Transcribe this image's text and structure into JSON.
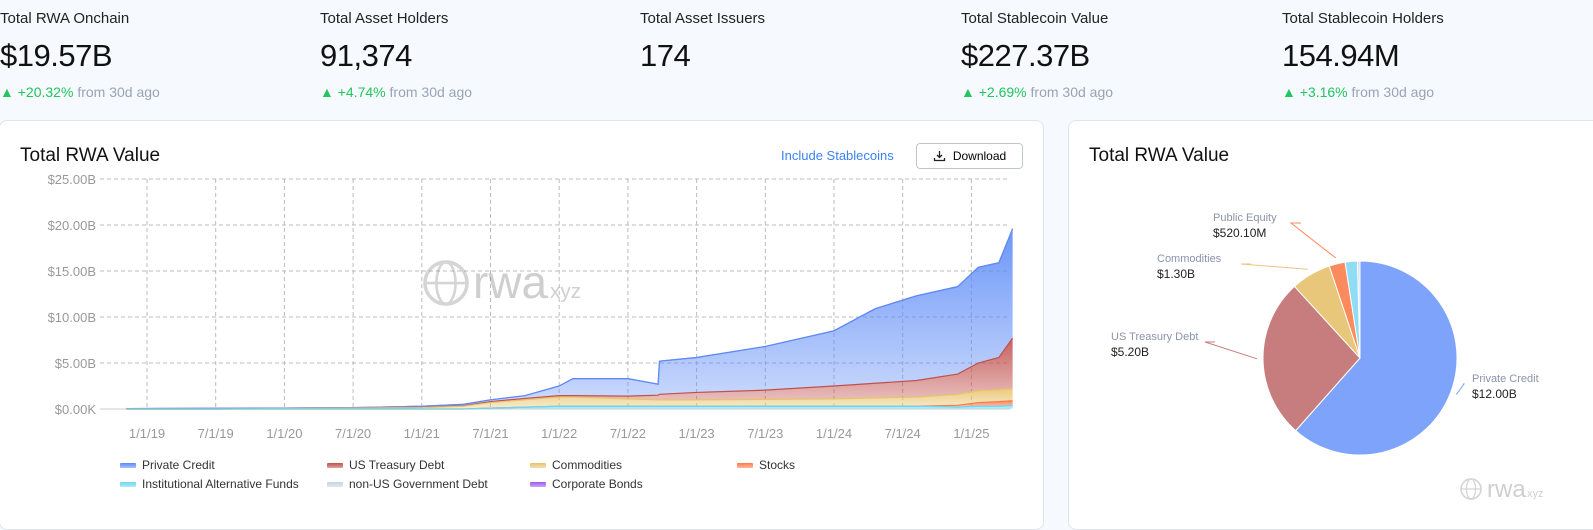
{
  "stats": [
    {
      "label": "Total RWA Onchain",
      "value": "$19.57B",
      "change": "+20.32%",
      "suffix": "from 30d ago"
    },
    {
      "label": "Total Asset Holders",
      "value": "91,374",
      "change": "+4.74%",
      "suffix": "from 30d ago"
    },
    {
      "label": "Total Asset Issuers",
      "value": "174"
    },
    {
      "label": "Total Stablecoin Value",
      "value": "$227.37B",
      "change": "+2.69%",
      "suffix": "from 30d ago"
    },
    {
      "label": "Total Stablecoin Holders",
      "value": "154.94M",
      "change": "+3.16%",
      "suffix": "from 30d ago"
    }
  ],
  "area_card": {
    "title": "Total RWA Value",
    "include_stablecoins": "Include Stablecoins",
    "download": "Download",
    "watermark": "rwa",
    "watermark_suffix": ".xyz"
  },
  "pie_card": {
    "title": "Total RWA Value",
    "watermark": "rwa",
    "watermark_suffix": ".xyz"
  },
  "colors": {
    "up": "#22c55e",
    "link": "#3b82f6"
  },
  "chart_data": [
    {
      "type": "area",
      "stacked": true,
      "title": "Total RWA Value",
      "yticks": [
        "$0.00K",
        "$5.00B",
        "$10.00B",
        "$15.00B",
        "$20.00B",
        "$25.00B"
      ],
      "ylim": [
        0,
        25
      ],
      "yunit": "B USD",
      "xticks": [
        "1/1/19",
        "7/1/19",
        "1/1/20",
        "7/1/20",
        "1/1/21",
        "7/1/21",
        "1/1/22",
        "7/1/22",
        "1/1/23",
        "7/1/23",
        "1/1/24",
        "7/1/24",
        "1/1/25"
      ],
      "x": [
        2018.85,
        2019.5,
        2020.0,
        2020.5,
        2021.0,
        2021.3,
        2021.5,
        2021.75,
        2022.0,
        2022.1,
        2022.5,
        2022.72,
        2022.73,
        2023.0,
        2023.5,
        2024.0,
        2024.3,
        2024.6,
        2024.9,
        2025.05,
        2025.2,
        2025.3
      ],
      "legend_position": "bottom",
      "grid": true,
      "series": [
        {
          "name": "Institutional Alternative Funds",
          "color": "#67d9f0",
          "values": [
            0,
            0,
            0,
            0,
            0,
            0,
            0.1,
            0.2,
            0.3,
            0.3,
            0.3,
            0.3,
            0.3,
            0.3,
            0.3,
            0.3,
            0.3,
            0.3,
            0.2,
            0.3,
            0.3,
            0.4
          ]
        },
        {
          "name": "Stocks",
          "color": "#fb7a4a",
          "values": [
            0,
            0,
            0,
            0,
            0,
            0,
            0,
            0,
            0,
            0,
            0,
            0,
            0,
            0,
            0,
            0,
            0,
            0,
            0.2,
            0.4,
            0.5,
            0.5
          ]
        },
        {
          "name": "Commodities",
          "color": "#e8c36a",
          "values": [
            0,
            0,
            0.05,
            0.1,
            0.15,
            0.3,
            0.6,
            0.8,
            1.0,
            1.0,
            0.8,
            0.7,
            0.7,
            0.7,
            0.75,
            0.8,
            0.9,
            1.0,
            1.2,
            1.3,
            1.3,
            1.3
          ]
        },
        {
          "name": "US Treasury Debt",
          "color": "#c0504d",
          "values": [
            0,
            0,
            0,
            0,
            0.02,
            0.05,
            0.1,
            0.15,
            0.15,
            0.15,
            0.3,
            0.5,
            0.6,
            0.8,
            1.0,
            1.4,
            1.6,
            1.8,
            2.2,
            3.0,
            3.5,
            5.5
          ]
        },
        {
          "name": "Private Credit",
          "color": "#5b8af7",
          "values": [
            0.05,
            0.08,
            0.05,
            0.05,
            0.13,
            0.15,
            0.2,
            0.3,
            1.05,
            1.85,
            1.9,
            1.2,
            3.6,
            3.8,
            4.75,
            6.0,
            8.1,
            9.2,
            9.5,
            10.4,
            10.3,
            11.9
          ]
        },
        {
          "name": "non-US Government Debt",
          "color": "#c8d2e6",
          "values": [
            0,
            0,
            0,
            0,
            0,
            0,
            0,
            0,
            0,
            0,
            0,
            0,
            0,
            0,
            0,
            0,
            0,
            0,
            0,
            0,
            0,
            0
          ]
        },
        {
          "name": "Corporate Bonds",
          "color": "#9b59f0",
          "values": [
            0,
            0,
            0,
            0,
            0,
            0,
            0,
            0,
            0,
            0,
            0,
            0,
            0,
            0,
            0,
            0,
            0,
            0,
            0,
            0,
            0,
            0
          ]
        }
      ],
      "legend": [
        "Private Credit",
        "US Treasury Debt",
        "Commodities",
        "Stocks",
        "Institutional Alternative Funds",
        "non-US Government Debt",
        "Corporate Bonds"
      ]
    },
    {
      "type": "pie",
      "title": "Total RWA Value",
      "slices": [
        {
          "name": "Private Credit",
          "value": 12.0,
          "label": "$12.00B",
          "color": "#7ea3fb",
          "labeled": true
        },
        {
          "name": "US Treasury Debt",
          "value": 5.2,
          "label": "$5.20B",
          "color": "#c77d7d",
          "labeled": true
        },
        {
          "name": "Commodities",
          "value": 1.3,
          "label": "$1.30B",
          "color": "#e8c77b",
          "labeled": true
        },
        {
          "name": "Public Equity",
          "value": 0.5201,
          "label": "$520.10M",
          "color": "#fb8a5c",
          "labeled": true
        },
        {
          "name": "Institutional Alternative Funds",
          "value": 0.4,
          "color": "#8fdcf5",
          "labeled": false
        },
        {
          "name": "non-US Government Debt",
          "value": 0.08,
          "color": "#d4dbe8",
          "labeled": false
        }
      ]
    }
  ]
}
